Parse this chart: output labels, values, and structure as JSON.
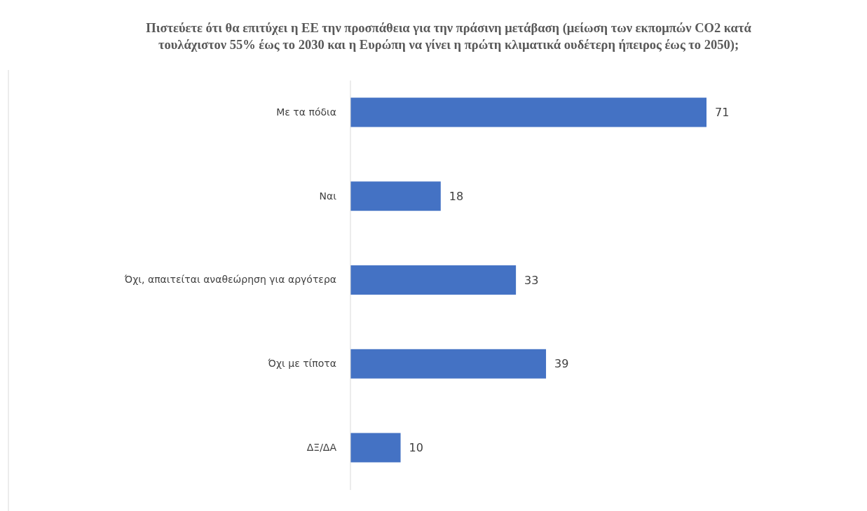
{
  "chart_data": {
    "type": "bar",
    "orientation": "horizontal",
    "title": "Πιστεύετε ότι θα επιτύχει η ΕΕ την προσπάθεια για την πράσινη μετάβαση (μείωση των εκπομπών CO2 κατά τουλάχιστον 55% έως το 2030 και η Ευρώπη να γίνει η πρώτη κλιματικά ουδέτερη ήπειρος έως το 2050);",
    "categories": [
      "Με τα πόδια",
      "Ναι",
      "Όχι, απαιτείται αναθεώρηση για αργότερα",
      "Όχι με τίποτα",
      "ΔΞ/ΔΑ"
    ],
    "values": [
      71,
      18,
      33,
      39,
      10
    ],
    "color": "#4472c4",
    "data_labels": true,
    "tick_labels": "y",
    "grid": false
  }
}
